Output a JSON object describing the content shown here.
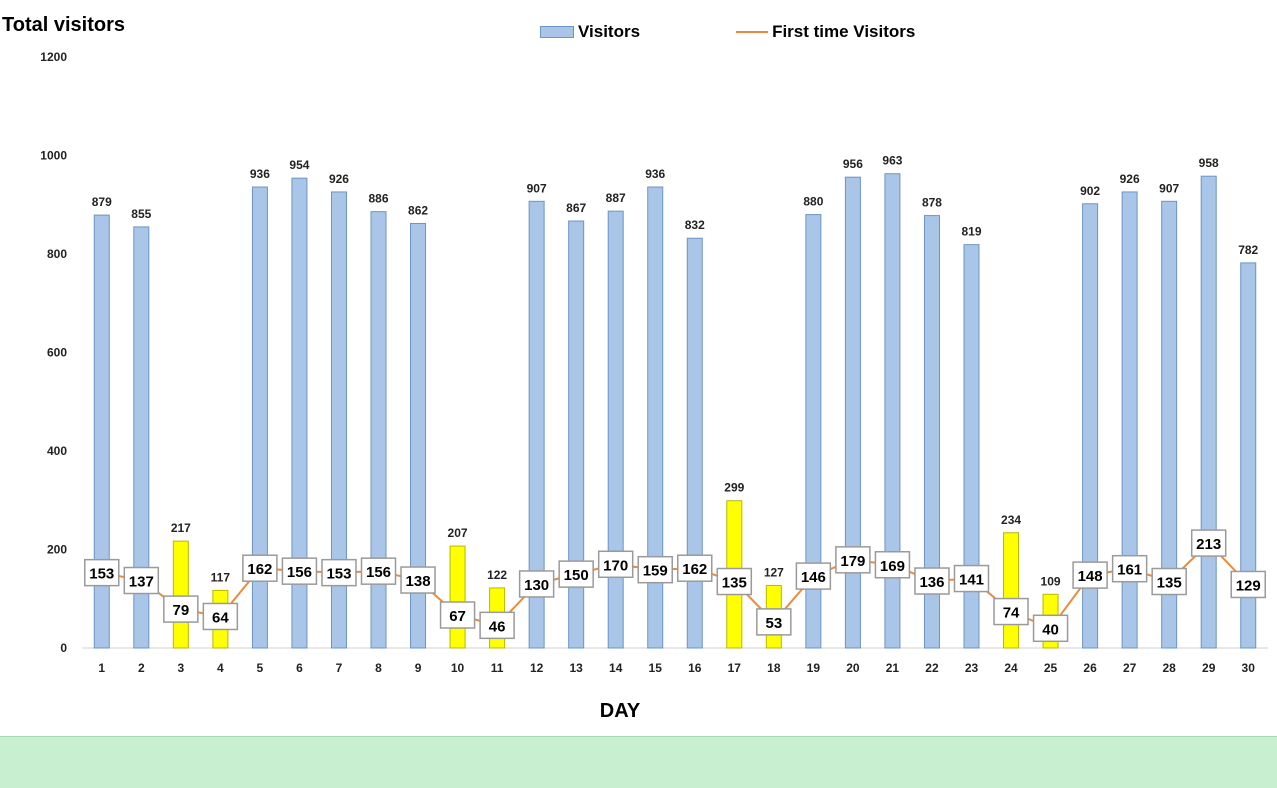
{
  "chart_data": {
    "type": "bar",
    "title": "Total visitors",
    "xlabel": "DAY",
    "ylabel": "",
    "ylim": [
      0,
      1200
    ],
    "yticks": [
      0,
      200,
      400,
      600,
      800,
      1000,
      1200
    ],
    "grid": false,
    "legend": "top-center",
    "categories": [
      "1",
      "2",
      "3",
      "4",
      "5",
      "6",
      "7",
      "8",
      "9",
      "10",
      "11",
      "12",
      "13",
      "14",
      "15",
      "16",
      "17",
      "18",
      "19",
      "20",
      "21",
      "22",
      "23",
      "24",
      "25",
      "26",
      "27",
      "28",
      "29",
      "30"
    ],
    "series": [
      {
        "name": "Visitors",
        "type": "bar",
        "values": [
          879,
          855,
          217,
          117,
          936,
          954,
          926,
          886,
          862,
          207,
          122,
          907,
          867,
          887,
          936,
          832,
          299,
          127,
          880,
          956,
          963,
          878,
          819,
          234,
          109,
          902,
          926,
          907,
          958,
          782
        ],
        "highlighted_days": [
          "3",
          "4",
          "10",
          "11",
          "17",
          "18",
          "24",
          "25"
        ]
      },
      {
        "name": "First time Visitors",
        "type": "line",
        "values": [
          153,
          137,
          79,
          64,
          162,
          156,
          153,
          156,
          138,
          67,
          46,
          130,
          150,
          170,
          159,
          162,
          135,
          53,
          146,
          179,
          169,
          136,
          141,
          74,
          40,
          148,
          161,
          135,
          213,
          129
        ]
      }
    ],
    "colors": {
      "bar": "#a9c6e8",
      "bar_border": "#6c94c4",
      "bar_highlight": "#ffff00",
      "bar_highlight_border": "#b8b800",
      "line": "#ec8a3c",
      "label_box_border": "#9a9a9a",
      "footer": "#c8efd0"
    }
  }
}
